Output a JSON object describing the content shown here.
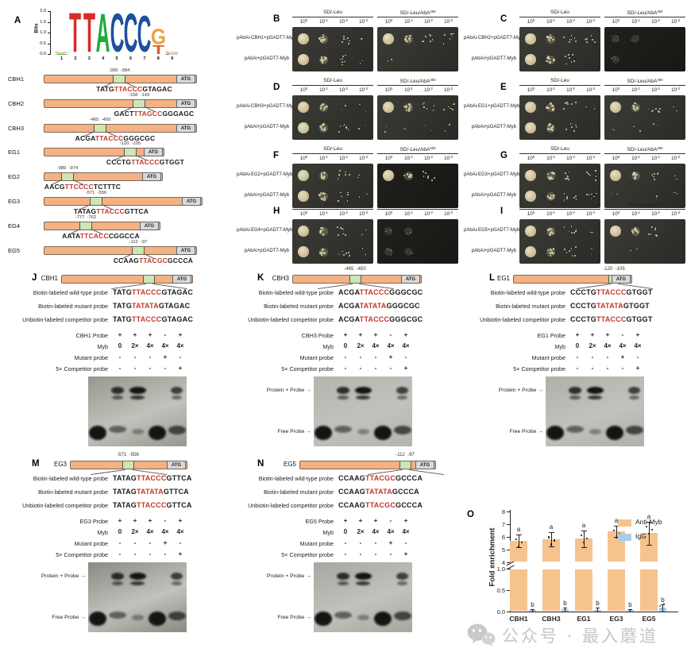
{
  "panel_a": {
    "label": "A",
    "logo": {
      "ylabel": "Bits",
      "yticks": [
        "2.0",
        "1.5",
        "1.0",
        "0.5",
        "0.0"
      ],
      "xticks": [
        "1",
        "2",
        "3",
        "4",
        "5",
        "6",
        "7",
        "8",
        "9"
      ],
      "stacks": [
        [
          {
            "ch": "G",
            "h": 0.08,
            "color": "#e8a33d"
          },
          {
            "ch": "A",
            "h": 0.05,
            "color": "#1faa3c"
          }
        ],
        [
          {
            "ch": "T",
            "h": 2.0,
            "color": "#d92b2b"
          }
        ],
        [
          {
            "ch": "T",
            "h": 2.0,
            "color": "#d92b2b"
          }
        ],
        [
          {
            "ch": "A",
            "h": 1.95,
            "color": "#1faa3c"
          }
        ],
        [
          {
            "ch": "C",
            "h": 1.95,
            "color": "#1f4f9e"
          }
        ],
        [
          {
            "ch": "C",
            "h": 1.95,
            "color": "#1f4f9e"
          }
        ],
        [
          {
            "ch": "C",
            "h": 1.85,
            "color": "#1f4f9e"
          }
        ],
        [
          {
            "ch": "G",
            "h": 0.78,
            "color": "#e8a33d"
          },
          {
            "ch": "T",
            "h": 0.45,
            "color": "#d9622b"
          }
        ],
        [
          {
            "ch": "G",
            "h": 0.07,
            "color": "#e8a33d"
          },
          {
            "ch": "C",
            "h": 0.05,
            "color": "#1f4f9e"
          }
        ]
      ]
    },
    "atg_label": "ATG",
    "genes": [
      {
        "name": "CBH1",
        "pos": "-399  -384",
        "pre": "TATG",
        "core": "TTACCC",
        "post": "GTAGAC"
      },
      {
        "name": "CBH2",
        "pos": "-158  -143",
        "pre": "GACT",
        "core": "TTAGCC",
        "post": "GGGAGC"
      },
      {
        "name": "CBH3",
        "pos": "-465  -450",
        "pre": "ACGA",
        "core": "TTACCC",
        "post": "GGGCGC"
      },
      {
        "name": "EG1",
        "pos": "-120  -105",
        "pre": "CCCTG",
        "core": "TTACCC",
        "post": "GTGGT"
      },
      {
        "name": "EG2",
        "pos": "-989  -974",
        "pre": "AACG",
        "core": "TTCCCC",
        "post": "TCTTTC"
      },
      {
        "name": "EG3",
        "pos": "-571  -556",
        "pre": "TATAG",
        "core": "TTACCC",
        "post": "GTTCA"
      },
      {
        "name": "EG4",
        "pos": "-777  -762",
        "pre": "AATA",
        "core": "TTCACC",
        "post": "CGGCCA"
      },
      {
        "name": "EG5",
        "pos": "-112  -97",
        "pre": "CCAAG",
        "core": "TTACGC",
        "post": "GCCCA"
      }
    ]
  },
  "y1h": {
    "dilution_base": "10",
    "dilution_exps": [
      "0",
      "-1",
      "-2",
      "-3"
    ],
    "panels": [
      {
        "label": "B",
        "row1": "pAbAi-CBH1+pGADT7-Myb",
        "row2": "pAbAi+pGADT7-Myb",
        "left_header": "SD/-Leu",
        "right_header": "SD/-Leu/AbA",
        "aba_sup": "250",
        "left_rows": [
          [
            "L",
            "M",
            "S",
            "T"
          ],
          [
            "L",
            "M",
            "S",
            "T"
          ]
        ],
        "right_rows": [
          [
            "L",
            "M",
            "S",
            "S"
          ],
          [
            "T",
            "N",
            "N",
            "N"
          ]
        ],
        "right_shade": "d"
      },
      {
        "label": "C",
        "row1": "pAbAi-CBH2+pGADT7-Myb",
        "row2": "pAbAi+pGADT7-Myb",
        "left_header": "SD/-Leu",
        "right_header": "SD/-Leu/AbA",
        "aba_sup": "450",
        "left_rows": [
          [
            "L",
            "M",
            "S",
            "S"
          ],
          [
            "L",
            "M",
            "S",
            "N"
          ]
        ],
        "right_rows": [
          [
            "F",
            "F",
            "N",
            "N"
          ],
          [
            "F",
            "N",
            "N",
            "N"
          ]
        ],
        "right_shade": "k"
      },
      {
        "label": "D",
        "row1": "pAbAi-CBH3+pGADT7-Myb",
        "row2": "pAbAi+pGADT7-Myb",
        "left_header": "SD/-Leu",
        "right_header": "SD/-Leu/AbA",
        "aba_sup": "360",
        "left_rows": [
          [
            "L",
            "M",
            "T",
            "T"
          ],
          [
            "L",
            "M",
            "S",
            "T"
          ]
        ],
        "right_rows": [
          [
            "L",
            "M",
            "S",
            "S"
          ],
          [
            "T",
            "T",
            "T",
            "T"
          ]
        ],
        "right_shade": "d"
      },
      {
        "label": "E",
        "row1": "pAbAi-EG1+pGADT7-Myb",
        "row2": "pAbAi+pGADT7-Myb",
        "left_header": "SD/-Leu",
        "right_header": "SD/-Leu/AbA",
        "aba_sup": "350",
        "left_rows": [
          [
            "L",
            "M",
            "S",
            "T"
          ],
          [
            "L",
            "M",
            "S",
            "N"
          ]
        ],
        "right_rows": [
          [
            "L",
            "M",
            "S",
            "T"
          ],
          [
            "T",
            "T",
            "T",
            "N"
          ]
        ],
        "right_shade": "d"
      },
      {
        "label": "F",
        "row1": "pAbAi-EG2+pGADT7-Myb",
        "row2": "pAbAi+pGADT7-Myb",
        "left_header": "SD/-Leu",
        "right_header": "SD/-Leu/AbA",
        "aba_sup": "500",
        "left_rows": [
          [
            "L",
            "M",
            "S",
            "T"
          ],
          [
            "L",
            "M",
            "S",
            "T"
          ]
        ],
        "right_rows": [
          [
            "L",
            "M",
            "S",
            "N"
          ],
          [
            "N",
            "N",
            "N",
            "N"
          ]
        ],
        "right_shade": "k"
      },
      {
        "label": "G",
        "row1": "pAbAi-EG3+pGADT7-Myb",
        "row2": "pAbAi+pGADT7-Myb",
        "left_header": "SD/-Leu",
        "right_header": "SD/-Leu/AbA",
        "aba_sup": "300",
        "left_rows": [
          [
            "L",
            "M",
            "S",
            "S"
          ],
          [
            "L",
            "M",
            "S",
            "S"
          ]
        ],
        "right_rows": [
          [
            "L",
            "M",
            "S",
            "T"
          ],
          [
            "T",
            "N",
            "T",
            "T"
          ]
        ],
        "right_shade": "d"
      },
      {
        "label": "H",
        "row1": "pAbAi-EG4+pGADT7-Myb",
        "row2": "pAbAi+pGADT7-Myb",
        "left_header": "SD/-Leu",
        "right_header": "SD/-Leu/AbA",
        "aba_sup": "600",
        "left_rows": [
          [
            "L",
            "M",
            "S",
            "T"
          ],
          [
            "L",
            "M",
            "S",
            "T"
          ]
        ],
        "right_rows": [
          [
            "F",
            "F",
            "N",
            "N"
          ],
          [
            "F",
            "F",
            "N",
            "N"
          ]
        ],
        "right_shade": "k"
      },
      {
        "label": "I",
        "row1": "pAbAi-EG5+pGADT7-Myb",
        "row2": "pAbAi+pGADT7-Myb",
        "left_header": "SD/-Leu",
        "right_header": "SD/-Leu/AbA",
        "aba_sup": "250",
        "left_rows": [
          [
            "L",
            "M",
            "S",
            "T"
          ],
          [
            "L",
            "M",
            "S",
            "T"
          ]
        ],
        "right_rows": [
          [
            "L",
            "M",
            "S",
            "N"
          ],
          [
            "N",
            "T",
            "N",
            "N"
          ]
        ],
        "right_shade": "d"
      }
    ]
  },
  "emsa": {
    "wild_label": "Biotin-labeled wild-type probe",
    "mutant_label": "Biotin-labeled mutant probe",
    "competitor_label": "Unbiotin-labeled competitor probe",
    "probe_word": "Probe",
    "myb_label": "Myb",
    "mutant_row_label": "Mutant probe",
    "competitor_row_label": "5× Competitor probe",
    "probe_values": [
      "+",
      "+",
      "+",
      "-",
      "+"
    ],
    "myb_values": [
      "0",
      "2×",
      "4×",
      "4×",
      "4×"
    ],
    "mutant_values": [
      "-",
      "-",
      "-",
      "+",
      "-"
    ],
    "competitor_values": [
      "-",
      "-",
      "-",
      "-",
      "+"
    ],
    "protein_probe_label": "Protein + Probe",
    "free_probe_label": "Free Probe",
    "atg_label": "ATG",
    "panels": [
      {
        "label": "J",
        "gene": "CBH1",
        "pos": "",
        "wild_pre": "TATG",
        "wild_core": "TTACCC",
        "wild_post": "GTAGAC",
        "mut_pre": "TATG",
        "mut_core": "TATATA",
        "mut_post": "GTAGAC",
        "gel_labels": false
      },
      {
        "label": "K",
        "gene": "CBH3",
        "pos": "-465  -450",
        "wild_pre": "ACGA",
        "wild_core": "TTACCC",
        "wild_post": "GGGCGC",
        "mut_pre": "ACGA",
        "mut_core": "TATATA",
        "mut_post": "GGGCGC",
        "gel_labels": true
      },
      {
        "label": "L",
        "gene": "EG1",
        "pos": "-120  -105",
        "wild_pre": "CCCTG",
        "wild_core": "TTACCC",
        "wild_post": "GTGGT",
        "mut_pre": "CCCTG",
        "mut_core": "TATATA",
        "mut_post": "GTGGT",
        "gel_labels": true
      },
      {
        "label": "M",
        "gene": "EG3",
        "pos": "-571  -556",
        "wild_pre": "TATAG",
        "wild_core": "TTACCC",
        "wild_post": "GTTCA",
        "mut_pre": "TATAG",
        "mut_core": "TATATA",
        "mut_post": "GTTCA",
        "gel_labels": true
      },
      {
        "label": "N",
        "gene": "EG5",
        "pos": "-112  -97",
        "wild_pre": "CCAAG",
        "wild_core": "TTACGC",
        "wild_post": "GCCCA",
        "mut_pre": "CCAAG",
        "mut_core": "TATATA",
        "mut_post": "GCCCA",
        "gel_labels": true
      }
    ]
  },
  "panel_o_label": "O",
  "chart_data": {
    "type": "bar",
    "categories": [
      "CBH1",
      "CBH3",
      "EG1",
      "EG3",
      "EG5"
    ],
    "series": [
      {
        "name": "Anti-Myb",
        "color": "#f6c28e",
        "values": [
          5.7,
          5.8,
          5.85,
          6.45,
          6.3
        ],
        "errors": [
          0.5,
          0.55,
          0.65,
          0.45,
          0.9
        ],
        "sig": "a"
      },
      {
        "name": "IgG",
        "color": "#a9ccec",
        "values": [
          0.03,
          0.05,
          0.04,
          0.03,
          0.1
        ],
        "errors": [
          0.03,
          0.05,
          0.06,
          0.03,
          0.06
        ],
        "sig": "b"
      }
    ],
    "ylabel": "Fold enrichment",
    "axis_break": {
      "upper_ticks": [
        "8",
        "7",
        "6",
        "5",
        "4"
      ],
      "upper_range": [
        4,
        8
      ],
      "lower_ticks": [
        "1.0",
        "0.5",
        "0.0"
      ],
      "lower_range": [
        0,
        1
      ]
    },
    "legend_position": "top-right",
    "grid": false
  },
  "watermark": {
    "text": "公众号 · 最入蘑道"
  }
}
